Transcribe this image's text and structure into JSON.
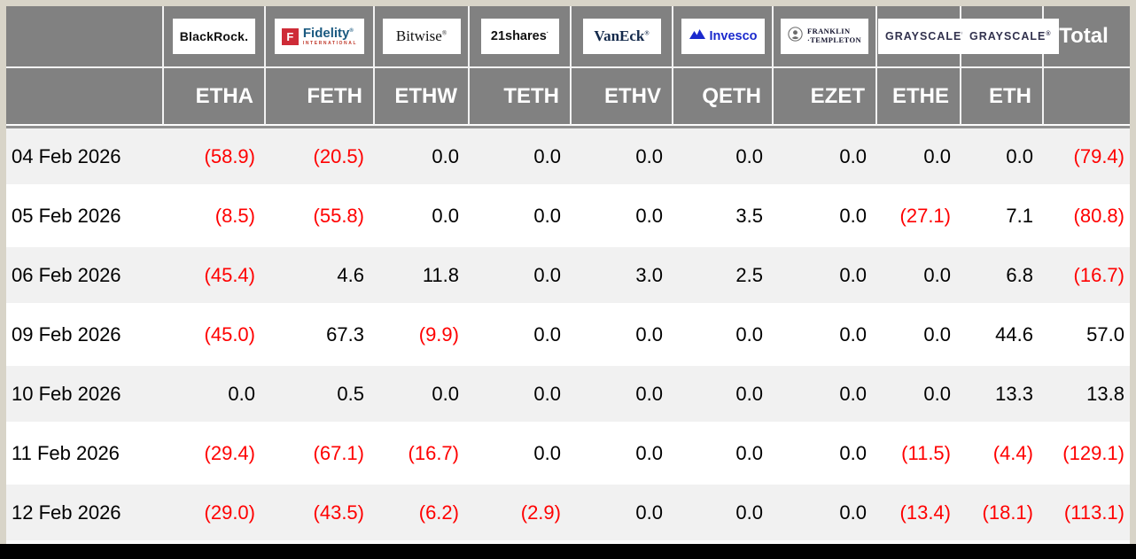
{
  "colors": {
    "header_bg": "#818181",
    "frame_border": "#d8d4c8",
    "row_alt_bg": "#f1f1f1",
    "negative_value": "#ff0000",
    "fidelity_red": "#ce2b37",
    "fidelity_blue": "#1b5a80",
    "vaneck_navy": "#13294b",
    "invesco_blue": "#1b2acd",
    "grayscale_navy": "#32324e"
  },
  "table": {
    "total_label": "Total",
    "columns": [
      {
        "ticker": "ETHA",
        "provider": "BlackRock",
        "logo": {
          "kind": "blackrock",
          "text": "BlackRock."
        }
      },
      {
        "ticker": "FETH",
        "provider": "Fidelity",
        "logo": {
          "kind": "fidelity",
          "initial": "F",
          "text": "Fidelity",
          "mark": "®",
          "sub": "INTERNATIONAL"
        }
      },
      {
        "ticker": "ETHW",
        "provider": "Bitwise",
        "logo": {
          "kind": "bitwise",
          "text": "Bitwise",
          "mark": "®"
        }
      },
      {
        "ticker": "TETH",
        "provider": "21shares",
        "logo": {
          "kind": "21shares",
          "text": "21shares",
          "mark": "·"
        }
      },
      {
        "ticker": "ETHV",
        "provider": "VanEck",
        "logo": {
          "kind": "vaneck",
          "text": "VanEck",
          "mark": "®"
        }
      },
      {
        "ticker": "QETH",
        "provider": "Invesco",
        "logo": {
          "kind": "invesco",
          "text": "Invesco"
        }
      },
      {
        "ticker": "EZET",
        "provider": "Franklin Templeton",
        "logo": {
          "kind": "franklin",
          "line1": "FRANKLIN",
          "line2": "·TEMPLETON"
        }
      },
      {
        "ticker": "ETHE",
        "provider": "Grayscale",
        "logo": {
          "kind": "grayscale",
          "text": "GRAYSCALE",
          "mark": "®"
        }
      },
      {
        "ticker": "ETH",
        "provider": "Grayscale",
        "logo": {
          "kind": "grayscale",
          "text": "GRAYSCALE",
          "mark": "®"
        }
      }
    ],
    "rows": [
      {
        "date": "04 Feb 2026",
        "values": [
          "(58.9)",
          "(20.5)",
          "0.0",
          "0.0",
          "0.0",
          "0.0",
          "0.0",
          "0.0",
          "0.0"
        ],
        "total": "(79.4)"
      },
      {
        "date": "05 Feb 2026",
        "values": [
          "(8.5)",
          "(55.8)",
          "0.0",
          "0.0",
          "0.0",
          "3.5",
          "0.0",
          "(27.1)",
          "7.1"
        ],
        "total": "(80.8)"
      },
      {
        "date": "06 Feb 2026",
        "values": [
          "(45.4)",
          "4.6",
          "11.8",
          "0.0",
          "3.0",
          "2.5",
          "0.0",
          "0.0",
          "6.8"
        ],
        "total": "(16.7)"
      },
      {
        "date": "09 Feb 2026",
        "values": [
          "(45.0)",
          "67.3",
          "(9.9)",
          "0.0",
          "0.0",
          "0.0",
          "0.0",
          "0.0",
          "44.6"
        ],
        "total": "57.0"
      },
      {
        "date": "10 Feb 2026",
        "values": [
          "0.0",
          "0.5",
          "0.0",
          "0.0",
          "0.0",
          "0.0",
          "0.0",
          "0.0",
          "13.3"
        ],
        "total": "13.8"
      },
      {
        "date": "11 Feb 2026",
        "values": [
          "(29.4)",
          "(67.1)",
          "(16.7)",
          "0.0",
          "0.0",
          "0.0",
          "0.0",
          "(11.5)",
          "(4.4)"
        ],
        "total": "(129.1)"
      },
      {
        "date": "12 Feb 2026",
        "values": [
          "(29.0)",
          "(43.5)",
          "(6.2)",
          "(2.9)",
          "0.0",
          "0.0",
          "0.0",
          "(13.4)",
          "(18.1)"
        ],
        "total": "(113.1)"
      }
    ]
  }
}
